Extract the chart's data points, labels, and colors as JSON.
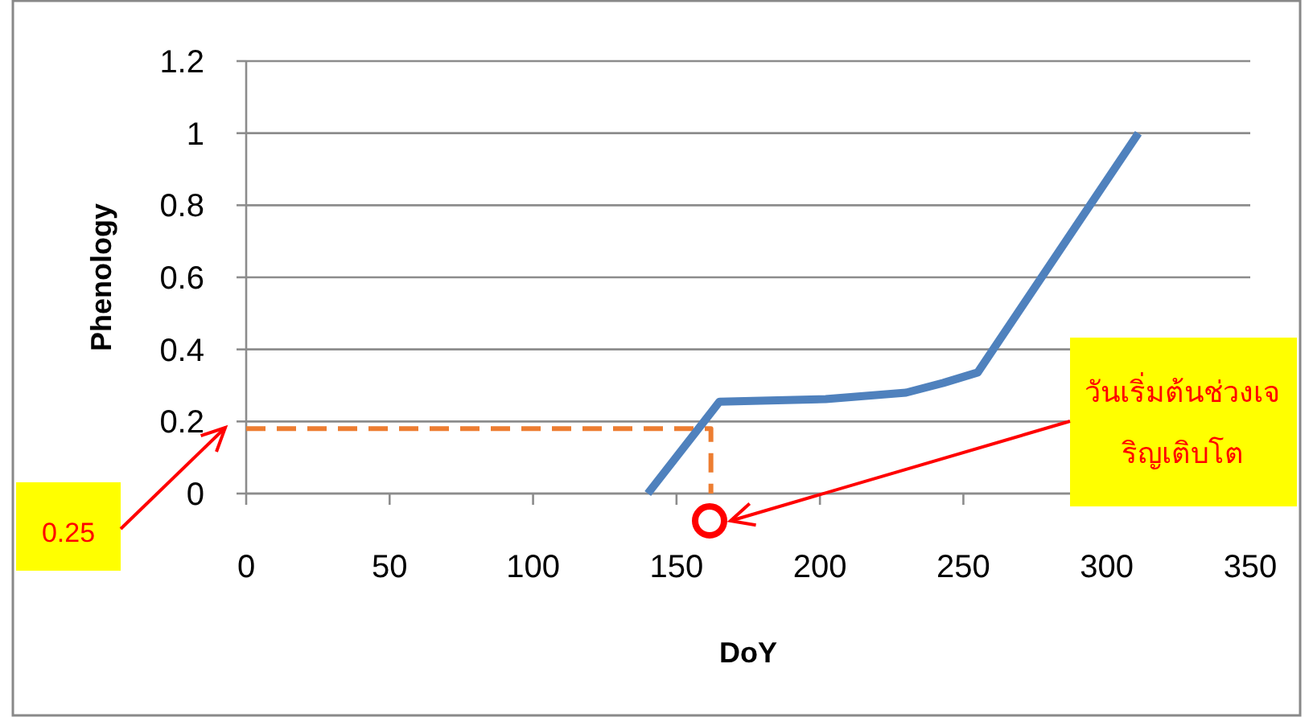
{
  "chart_data": {
    "type": "line",
    "xlabel": "DoY",
    "ylabel": "Phenology",
    "xlim": [
      0,
      350
    ],
    "xticks": [
      0,
      50,
      100,
      150,
      200,
      250,
      300,
      350
    ],
    "ylim": [
      0,
      1.2
    ],
    "yticks": [
      0,
      0.2,
      0.4,
      0.6,
      0.8,
      1,
      1.2
    ],
    "grid": "y",
    "marker": "none",
    "series": [
      {
        "color": "#ed7d31",
        "line_style": "dashed",
        "x": [
          0,
          162,
          162
        ],
        "values": [
          0.18,
          0.18,
          0
        ]
      },
      {
        "color": "#4f81bd",
        "line_style": "solid",
        "x": [
          140,
          165,
          202,
          230,
          243,
          255,
          311
        ],
        "values": [
          0,
          0.255,
          0.262,
          0.28,
          0.307,
          0.336,
          1
        ]
      }
    ],
    "annotations": [
      "0.25",
      "วันเริ่มต้นช่วงเจริญเติบโต"
    ]
  }
}
